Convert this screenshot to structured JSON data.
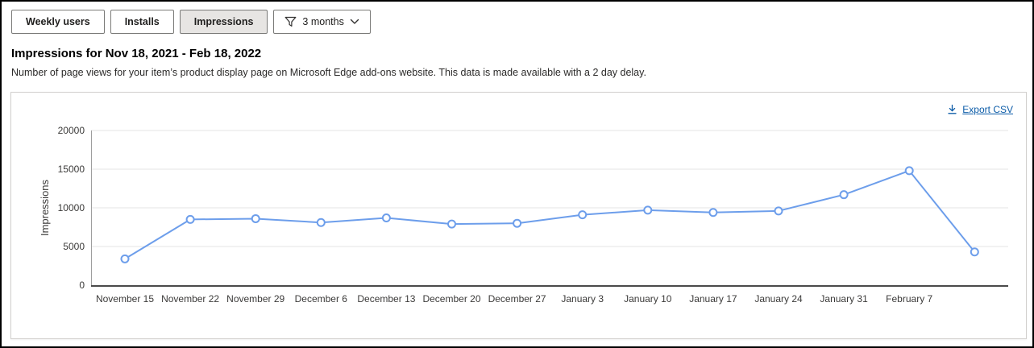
{
  "toolbar": {
    "buttons": [
      {
        "label": "Weekly users",
        "selected": false
      },
      {
        "label": "Installs",
        "selected": false
      },
      {
        "label": "Impressions",
        "selected": true
      }
    ],
    "filter": {
      "label": "3 months"
    }
  },
  "section": {
    "title": "Impressions for Nov 18, 2021 - Feb 18, 2022",
    "description": "Number of page views for your item’s product display page on Microsoft Edge add-ons website. This data is made available with a 2 day delay."
  },
  "panel": {
    "export_label": "Export CSV"
  },
  "chart_data": {
    "type": "line",
    "title": "",
    "xlabel": "",
    "ylabel": "Impressions",
    "x_labels": [
      "November 15",
      "November 22",
      "November 29",
      "December 6",
      "December 13",
      "December 20",
      "December 27",
      "January 3",
      "January 10",
      "January 17",
      "January 24",
      "January 31",
      "February 7",
      ""
    ],
    "values": [
      3400,
      8500,
      8600,
      8100,
      8700,
      7900,
      8000,
      9100,
      9700,
      9400,
      9600,
      11700,
      14800,
      4300
    ],
    "y_ticks": [
      0,
      5000,
      10000,
      15000,
      20000
    ],
    "ylim": [
      0,
      20000
    ],
    "grid": true,
    "legend": "none",
    "line_color": "#6d9eeb",
    "marker": "open-circle",
    "marker_fill": "#ffffff",
    "grid_color": "#e6e6e6",
    "axis_color": "#4a4a4a",
    "y_axis_line_color": "#9e9e9e",
    "tick_label_color": "#3b3a39"
  }
}
